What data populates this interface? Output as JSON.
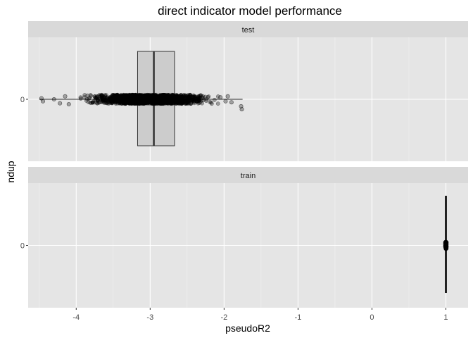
{
  "chart_data": {
    "type": "boxplot_jitter",
    "title": "direct indicator model performance",
    "xlabel": "pseudoR2",
    "ylabel": "ndup",
    "xlim": [
      -4.65,
      1.3
    ],
    "x_ticks": [
      -4,
      -3,
      -2,
      -1,
      0,
      1
    ],
    "x_tick_labels": [
      "-4",
      "-3",
      "-2",
      "-1",
      "0",
      "1"
    ],
    "y_category_label": "0",
    "grid": true,
    "panels": [
      {
        "facet": "test",
        "box": {
          "min": -4.5,
          "q1": -3.17,
          "median": -2.95,
          "q3": -2.67,
          "max": -1.75
        },
        "points": [
          {
            "x": -4.47,
            "y": 0.01
          },
          {
            "x": -4.45,
            "y": -0.02
          },
          {
            "x": -4.3,
            "y": 0.0
          },
          {
            "x": -4.22,
            "y": -0.04
          },
          {
            "x": -4.15,
            "y": 0.03
          },
          {
            "x": -4.1,
            "y": -0.05
          },
          {
            "x": -2.05,
            "y": 0.02
          },
          {
            "x": -1.98,
            "y": -0.02
          },
          {
            "x": -1.95,
            "y": 0.03
          },
          {
            "x": -1.9,
            "y": -0.03
          },
          {
            "x": -1.77,
            "y": -0.07
          },
          {
            "x": -1.76,
            "y": -0.1
          }
        ],
        "dense_range": [
          -4.05,
          -2.0
        ]
      },
      {
        "facet": "train",
        "box": {
          "min": 1.0,
          "q1": 1.0,
          "median": 1.0,
          "q3": 1.0,
          "max": 1.0
        },
        "points": [],
        "dense_range": [
          1.0,
          1.0
        ]
      }
    ]
  }
}
